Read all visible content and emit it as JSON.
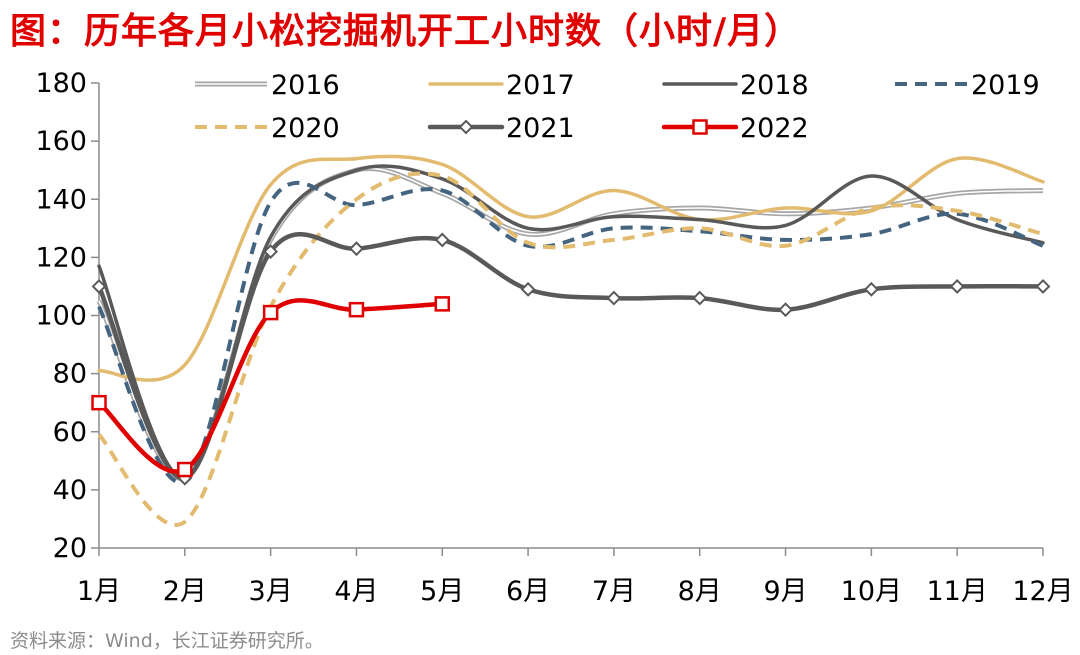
{
  "title": "图：历年各月小松挖掘机开工小时数（小时/月）",
  "source": "资料来源：Wind，长江证券研究所。",
  "chart_data": {
    "type": "line",
    "categories": [
      "1月",
      "2月",
      "3月",
      "4月",
      "5月",
      "6月",
      "7月",
      "8月",
      "9月",
      "10月",
      "11月",
      "12月"
    ],
    "ylim": [
      20,
      180
    ],
    "yticks": [
      20,
      40,
      60,
      80,
      100,
      120,
      140,
      160,
      180
    ],
    "xlabel": "",
    "ylabel": "",
    "legend_position": "top",
    "series": [
      {
        "name": "2016",
        "color": "#a6a6a6",
        "style": "double",
        "values": [
          105,
          44,
          126,
          150,
          142,
          128,
          135,
          137,
          135,
          137,
          142,
          143
        ]
      },
      {
        "name": "2017",
        "color": "#e2bb6e",
        "style": "solid",
        "values": [
          81,
          83,
          145,
          154,
          152,
          134,
          143,
          133,
          137,
          136,
          154,
          146
        ]
      },
      {
        "name": "2018",
        "color": "#595959",
        "style": "solid",
        "values": [
          117,
          44,
          127,
          150,
          147,
          130,
          134,
          133,
          131,
          148,
          133,
          125
        ]
      },
      {
        "name": "2019",
        "color": "#44647f",
        "style": "dashed",
        "values": [
          103,
          43,
          139,
          138,
          143,
          124,
          130,
          129,
          126,
          128,
          135,
          124
        ]
      },
      {
        "name": "2020",
        "color": "#e2bb6e",
        "style": "dashed",
        "values": [
          59,
          29,
          103,
          140,
          148,
          125,
          126,
          130,
          124,
          137,
          136,
          128
        ]
      },
      {
        "name": "2021",
        "color": "#595959",
        "style": "solid-diamond",
        "values": [
          110,
          44,
          122,
          123,
          126,
          109,
          106,
          106,
          102,
          109,
          110,
          110
        ]
      },
      {
        "name": "2022",
        "color": "#e00000",
        "style": "solid-square",
        "values": [
          70,
          47,
          101,
          102,
          104,
          null,
          null,
          null,
          null,
          null,
          null,
          null
        ]
      }
    ]
  }
}
